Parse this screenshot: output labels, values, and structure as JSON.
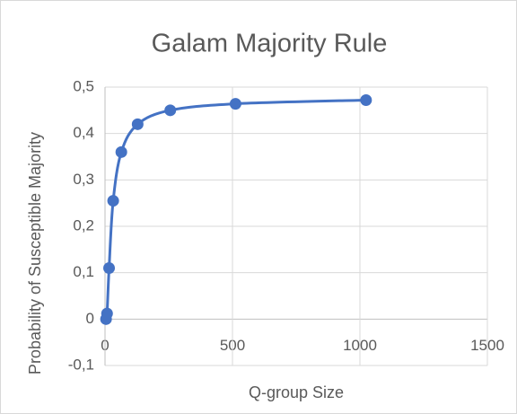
{
  "chart_data": {
    "type": "scatter",
    "title": "Galam Majority Rule",
    "x_label": "Q-group Size",
    "y_label": "Probability of Susceptible Majority",
    "series": [
      {
        "name": "Galam Majority Rule",
        "color": "#4472c4",
        "x": [
          4,
          8,
          16,
          32,
          64,
          128,
          256,
          512,
          1024
        ],
        "values": [
          0,
          0.012,
          0.11,
          0.255,
          0.36,
          0.42,
          0.45,
          0.464,
          0.472
        ]
      }
    ],
    "xlim": [
      0,
      1500
    ],
    "xticks": [
      0,
      500,
      1000,
      1500
    ],
    "ylim": [
      -0.1,
      0.5
    ],
    "yticks": [
      {
        "value": -0.1,
        "label": "-0,1"
      },
      0,
      {
        "value": 0.1,
        "label": "0,1"
      },
      {
        "value": 0.2,
        "label": "0,2"
      },
      {
        "value": 0.3,
        "label": "0,3"
      },
      {
        "value": 0.4,
        "label": "0,4"
      },
      {
        "value": 0.5,
        "label": "0,5"
      }
    ],
    "grid": true,
    "smooth": true
  }
}
